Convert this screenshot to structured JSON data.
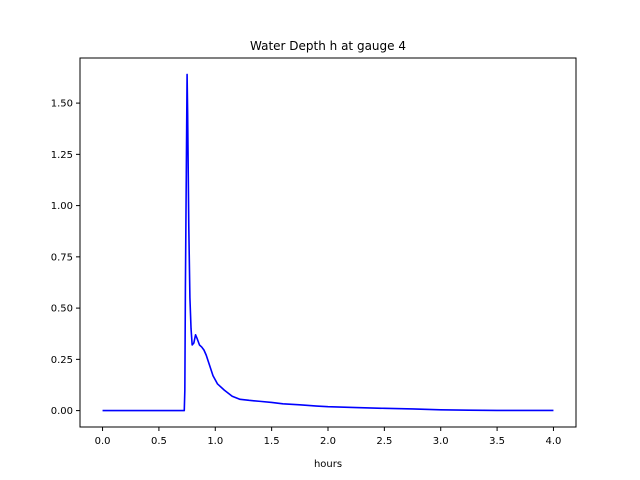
{
  "chart_data": {
    "type": "line",
    "title": "Water Depth h at gauge 4",
    "xlabel": "hours",
    "ylabel": "",
    "xlim": [
      -0.2,
      4.2
    ],
    "ylim": [
      -0.08,
      1.72
    ],
    "x_ticks": [
      0.0,
      0.5,
      1.0,
      1.5,
      2.0,
      2.5,
      3.0,
      3.5,
      4.0
    ],
    "x_tick_labels": [
      "0.0",
      "0.5",
      "1.0",
      "1.5",
      "2.0",
      "2.5",
      "3.0",
      "3.5",
      "4.0"
    ],
    "y_ticks": [
      0.0,
      0.25,
      0.5,
      0.75,
      1.0,
      1.25,
      1.5
    ],
    "y_tick_labels": [
      "0.00",
      "0.25",
      "0.50",
      "0.75",
      "1.00",
      "1.25",
      "1.50"
    ],
    "grid": false,
    "series": [
      {
        "color": "#0000ff",
        "points": [
          [
            0.0,
            0.0
          ],
          [
            0.5,
            0.0
          ],
          [
            0.72,
            0.0
          ],
          [
            0.725,
            0.0
          ],
          [
            0.73,
            0.1
          ],
          [
            0.735,
            0.6
          ],
          [
            0.745,
            1.3
          ],
          [
            0.75,
            1.64
          ],
          [
            0.755,
            1.45
          ],
          [
            0.765,
            0.9
          ],
          [
            0.775,
            0.55
          ],
          [
            0.785,
            0.4
          ],
          [
            0.795,
            0.32
          ],
          [
            0.81,
            0.33
          ],
          [
            0.825,
            0.37
          ],
          [
            0.84,
            0.35
          ],
          [
            0.86,
            0.32
          ],
          [
            0.88,
            0.31
          ],
          [
            0.9,
            0.295
          ],
          [
            0.92,
            0.27
          ],
          [
            0.95,
            0.22
          ],
          [
            0.98,
            0.17
          ],
          [
            1.02,
            0.13
          ],
          [
            1.08,
            0.1
          ],
          [
            1.15,
            0.07
          ],
          [
            1.22,
            0.055
          ],
          [
            1.3,
            0.05
          ],
          [
            1.4,
            0.045
          ],
          [
            1.5,
            0.04
          ],
          [
            1.6,
            0.033
          ],
          [
            1.75,
            0.028
          ],
          [
            1.9,
            0.022
          ],
          [
            2.0,
            0.019
          ],
          [
            2.25,
            0.015
          ],
          [
            2.5,
            0.011
          ],
          [
            2.75,
            0.008
          ],
          [
            3.0,
            0.004
          ],
          [
            3.25,
            0.002
          ],
          [
            3.5,
            0.001
          ],
          [
            3.75,
            0.001
          ],
          [
            4.0,
            0.001
          ]
        ]
      }
    ]
  }
}
